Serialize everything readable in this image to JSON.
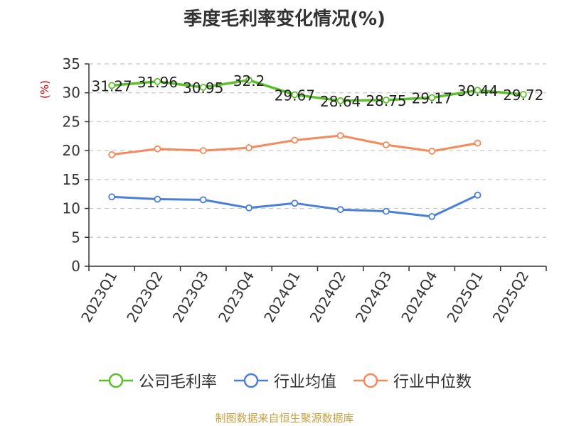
{
  "chart_data": {
    "type": "line",
    "title": "季度毛利率变化情况(%)",
    "ylabel": "(%)",
    "xlabel": "",
    "ylim": [
      0,
      35
    ],
    "yticks": [
      0,
      5,
      10,
      15,
      20,
      25,
      30,
      35
    ],
    "grid": true,
    "legend_position": "bottom",
    "categories": [
      "2023Q1",
      "2023Q2",
      "2023Q3",
      "2023Q4",
      "2024Q1",
      "2024Q2",
      "2024Q3",
      "2024Q4",
      "2025Q1",
      "2025Q2"
    ],
    "series": [
      {
        "name": "公司毛利率",
        "color": "#5cbf2a",
        "values": [
          31.27,
          31.96,
          30.95,
          32.2,
          29.67,
          28.64,
          28.75,
          29.17,
          30.44,
          29.72
        ],
        "labels": [
          "31.27",
          "31.96",
          "30.95",
          "32.2",
          "29.67",
          "28.64",
          "28.75",
          "29.17",
          "30.44",
          "29.72"
        ]
      },
      {
        "name": "行业均值",
        "color": "#4a7fd8",
        "values": [
          12.0,
          11.6,
          11.5,
          10.1,
          10.9,
          9.8,
          9.5,
          8.6,
          12.3,
          null
        ]
      },
      {
        "name": "行业中位数",
        "color": "#f48a5c",
        "values": [
          19.3,
          20.3,
          20.0,
          20.5,
          21.8,
          22.6,
          21.0,
          19.9,
          21.3,
          null
        ]
      }
    ]
  },
  "source": "制图数据来自恒生聚源数据库"
}
